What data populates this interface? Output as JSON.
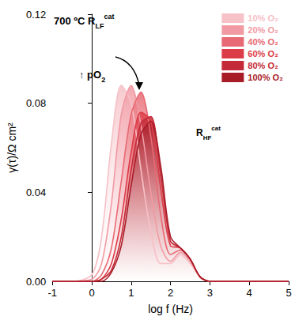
{
  "chart_data": {
    "type": "area",
    "x_label": "log f (Hz)",
    "y_label": "γ(τ)/Ω cm²",
    "x": [
      -1,
      -0.5,
      0,
      0.25,
      0.5,
      0.75,
      1,
      1.25,
      1.5,
      1.75,
      2,
      2.25,
      2.5,
      2.75,
      3,
      4,
      5
    ],
    "series": [
      {
        "name": "10% O₂",
        "color": "#f6c1c7",
        "values": [
          0,
          0,
          0.003,
          0.02,
          0.062,
          0.088,
          0.08,
          0.05,
          0.022,
          0.008,
          0.008,
          0.012,
          0.008,
          0.002,
          0,
          0,
          0
        ]
      },
      {
        "name": "20% O₂",
        "color": "#f19aa3",
        "values": [
          0,
          0,
          0.001,
          0.008,
          0.035,
          0.075,
          0.088,
          0.07,
          0.04,
          0.016,
          0.009,
          0.013,
          0.009,
          0.002,
          0,
          0,
          0
        ]
      },
      {
        "name": "40% O₂",
        "color": "#e86a74",
        "values": [
          0,
          0,
          0,
          0.003,
          0.015,
          0.045,
          0.075,
          0.085,
          0.065,
          0.03,
          0.012,
          0.014,
          0.01,
          0.002,
          0,
          0,
          0
        ]
      },
      {
        "name": "60% O₂",
        "color": "#dc3c48",
        "values": [
          0,
          0,
          0,
          0.001,
          0.008,
          0.028,
          0.058,
          0.076,
          0.072,
          0.042,
          0.016,
          0.015,
          0.01,
          0.002,
          0,
          0,
          0
        ]
      },
      {
        "name": "80% O₂",
        "color": "#c42a37",
        "values": [
          0,
          0,
          0,
          0.001,
          0.005,
          0.02,
          0.05,
          0.071,
          0.074,
          0.048,
          0.018,
          0.015,
          0.01,
          0.002,
          0,
          0,
          0
        ]
      },
      {
        "name": "100% O₂",
        "color": "#a81c28",
        "values": [
          0,
          0,
          0,
          0,
          0.004,
          0.016,
          0.043,
          0.066,
          0.072,
          0.052,
          0.02,
          0.015,
          0.01,
          0.002,
          0,
          0,
          0
        ]
      }
    ],
    "xlim": [
      -1,
      5
    ],
    "xticks": [
      -1,
      0,
      1,
      2,
      3,
      4,
      5
    ],
    "ylim": [
      0,
      0.12
    ],
    "yticks": [
      {
        "value": 0,
        "label": "0.00"
      },
      0.04,
      0.08,
      0.12
    ],
    "annotations": [
      {
        "text": "700 ºC R",
        "sub": "LF",
        "sup": "cat"
      },
      {
        "text": "↑ pO",
        "sub": "2"
      },
      {
        "text": "R",
        "sub": "HF",
        "sup": "cat"
      }
    ],
    "legend": "top-right",
    "grid": false
  }
}
